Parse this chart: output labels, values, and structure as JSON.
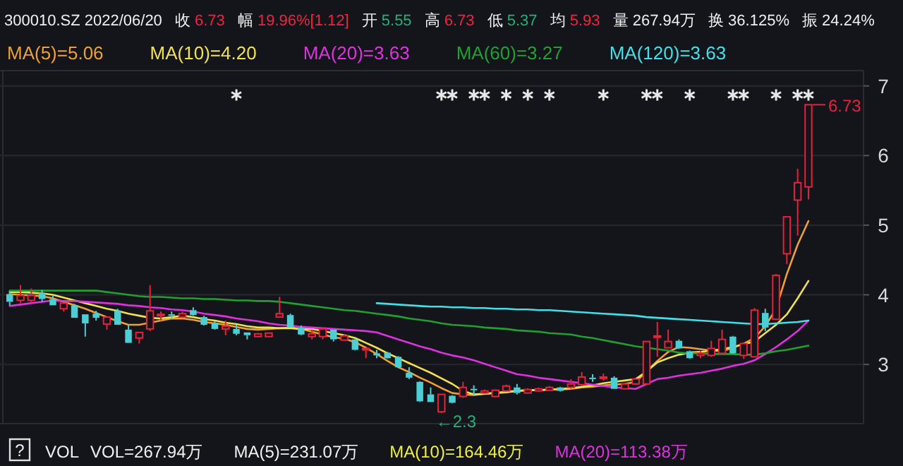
{
  "chart_data": {
    "type": "candlestick",
    "title": "300010.SZ 2022/06/20",
    "categories": [
      null,
      null,
      null,
      null,
      null,
      null,
      null,
      null,
      null,
      null,
      null,
      null,
      null,
      null,
      null,
      null,
      null,
      null,
      null,
      null,
      null,
      null,
      null,
      null,
      null,
      null,
      null,
      null,
      null,
      null,
      null,
      null,
      null,
      null,
      null,
      null,
      null,
      null,
      null,
      null,
      null,
      null,
      null,
      null,
      null,
      null,
      null,
      null,
      null,
      null,
      null,
      null,
      null,
      null,
      null,
      null,
      null,
      null,
      null,
      null,
      null,
      null,
      null,
      null,
      null,
      null,
      null,
      null,
      null,
      null,
      null,
      null,
      null,
      null,
      null
    ],
    "ohlc": [
      [
        4.01,
        4.05,
        3.85,
        3.9
      ],
      [
        3.92,
        4.14,
        3.88,
        3.99
      ],
      [
        3.92,
        4.09,
        3.88,
        3.99
      ],
      [
        4.03,
        4.07,
        3.9,
        3.94
      ],
      [
        3.94,
        4.0,
        3.85,
        3.85
      ],
      [
        3.8,
        3.88,
        3.76,
        3.88
      ],
      [
        3.85,
        3.87,
        3.67,
        3.67
      ],
      [
        3.72,
        3.72,
        3.4,
        3.59
      ],
      [
        3.73,
        3.77,
        3.63,
        3.67
      ],
      [
        3.58,
        3.68,
        3.5,
        3.68
      ],
      [
        3.77,
        3.8,
        3.57,
        3.57
      ],
      [
        3.5,
        3.58,
        3.31,
        3.31
      ],
      [
        3.38,
        3.46,
        3.3,
        3.46
      ],
      [
        3.51,
        4.14,
        3.48,
        3.77
      ],
      [
        3.7,
        3.76,
        3.63,
        3.72
      ],
      [
        3.72,
        3.76,
        3.65,
        3.7
      ],
      [
        3.68,
        3.76,
        3.67,
        3.73
      ],
      [
        3.78,
        3.82,
        3.7,
        3.71
      ],
      [
        3.68,
        3.7,
        3.56,
        3.57
      ],
      [
        3.6,
        3.62,
        3.5,
        3.51
      ],
      [
        3.51,
        3.63,
        3.42,
        3.55
      ],
      [
        3.51,
        3.57,
        3.42,
        3.44
      ],
      [
        3.46,
        3.46,
        3.36,
        3.42
      ],
      [
        3.4,
        3.45,
        3.39,
        3.44
      ],
      [
        3.4,
        3.46,
        3.39,
        3.45
      ],
      [
        3.68,
        3.97,
        3.67,
        3.73
      ],
      [
        3.71,
        3.73,
        3.53,
        3.53
      ],
      [
        3.53,
        3.56,
        3.42,
        3.43
      ],
      [
        3.4,
        3.5,
        3.36,
        3.44
      ],
      [
        3.4,
        3.53,
        3.36,
        3.51
      ],
      [
        3.5,
        3.5,
        3.33,
        3.36
      ],
      [
        3.35,
        3.43,
        3.34,
        3.41
      ],
      [
        3.36,
        3.37,
        3.2,
        3.21
      ],
      [
        3.21,
        3.23,
        3.09,
        3.23
      ],
      [
        3.16,
        3.21,
        3.09,
        3.13
      ],
      [
        3.17,
        3.18,
        3.08,
        3.09
      ],
      [
        3.11,
        3.12,
        2.95,
        2.96
      ],
      [
        2.88,
        2.96,
        2.79,
        2.81
      ],
      [
        2.75,
        2.76,
        2.46,
        2.47
      ],
      [
        2.57,
        2.67,
        2.46,
        2.46
      ],
      [
        2.32,
        2.57,
        2.3,
        2.57
      ],
      [
        2.55,
        2.56,
        2.44,
        2.45
      ],
      [
        2.54,
        2.75,
        2.52,
        2.67
      ],
      [
        2.65,
        2.7,
        2.55,
        2.63
      ],
      [
        2.59,
        2.64,
        2.58,
        2.62
      ],
      [
        2.54,
        2.64,
        2.53,
        2.63
      ],
      [
        2.62,
        2.71,
        2.61,
        2.69
      ],
      [
        2.67,
        2.72,
        2.57,
        2.59
      ],
      [
        2.59,
        2.66,
        2.58,
        2.64
      ],
      [
        2.62,
        2.67,
        2.61,
        2.65
      ],
      [
        2.63,
        2.69,
        2.62,
        2.67
      ],
      [
        2.67,
        2.68,
        2.61,
        2.62
      ],
      [
        2.67,
        2.79,
        2.65,
        2.72
      ],
      [
        2.71,
        2.89,
        2.69,
        2.82
      ],
      [
        2.81,
        2.86,
        2.75,
        2.79
      ],
      [
        2.8,
        2.87,
        2.77,
        2.82
      ],
      [
        2.81,
        2.83,
        2.65,
        2.65
      ],
      [
        2.65,
        2.73,
        2.64,
        2.72
      ],
      [
        2.72,
        2.8,
        2.71,
        2.79
      ],
      [
        2.72,
        3.33,
        2.7,
        3.33
      ],
      [
        3.4,
        3.61,
        3.11,
        3.41
      ],
      [
        3.24,
        3.5,
        3.23,
        3.33
      ],
      [
        3.34,
        3.36,
        3.22,
        3.23
      ],
      [
        3.19,
        3.2,
        3.08,
        3.09
      ],
      [
        3.13,
        3.19,
        3.09,
        3.16
      ],
      [
        3.13,
        3.34,
        3.11,
        3.23
      ],
      [
        3.16,
        3.5,
        3.15,
        3.36
      ],
      [
        3.4,
        3.41,
        3.15,
        3.16
      ],
      [
        3.13,
        3.31,
        3.08,
        3.3
      ],
      [
        3.11,
        3.81,
        3.1,
        3.78
      ],
      [
        3.74,
        3.8,
        3.48,
        3.53
      ],
      [
        3.65,
        4.3,
        3.64,
        4.28
      ],
      [
        4.59,
        5.12,
        4.44,
        5.12
      ],
      [
        5.36,
        5.81,
        4.85,
        5.61
      ],
      [
        5.55,
        6.73,
        5.37,
        6.73
      ]
    ],
    "series": [
      {
        "name": "MA(5)=5.06",
        "type": "line",
        "color": "#f0a030",
        "values": [
          4.01,
          4.0,
          3.99,
          3.98,
          3.95,
          3.9,
          3.85,
          3.8,
          3.74,
          3.68,
          3.62,
          3.57,
          3.57,
          3.6,
          3.63,
          3.66,
          3.66,
          3.64,
          3.61,
          3.59,
          3.57,
          3.54,
          3.51,
          3.5,
          3.51,
          3.52,
          3.53,
          3.51,
          3.47,
          3.43,
          3.39,
          3.37,
          3.32,
          3.24,
          3.15,
          3.05,
          2.96,
          2.89,
          2.81,
          2.74,
          2.66,
          2.59,
          2.57,
          2.56,
          2.58,
          2.59,
          2.61,
          2.62,
          2.63,
          2.63,
          2.64,
          2.64,
          2.65,
          2.67,
          2.68,
          2.7,
          2.71,
          2.72,
          2.75,
          2.9,
          3.05,
          3.18,
          3.25,
          3.24,
          3.22,
          3.2,
          3.19,
          3.24,
          3.3,
          3.38,
          3.55,
          3.8,
          4.3,
          4.72,
          5.06
        ]
      },
      {
        "name": "MA(10)=4.20",
        "type": "line",
        "color": "#f0e050",
        "values": [
          4.04,
          4.04,
          4.03,
          4.02,
          4.0,
          3.96,
          3.92,
          3.88,
          3.84,
          3.8,
          3.77,
          3.73,
          3.7,
          3.67,
          3.66,
          3.68,
          3.7,
          3.68,
          3.65,
          3.63,
          3.6,
          3.58,
          3.55,
          3.53,
          3.53,
          3.52,
          3.52,
          3.51,
          3.51,
          3.48,
          3.45,
          3.42,
          3.38,
          3.31,
          3.24,
          3.16,
          3.09,
          3.02,
          2.95,
          2.88,
          2.8,
          2.72,
          2.62,
          2.57,
          2.58,
          2.59,
          2.6,
          2.62,
          2.63,
          2.63,
          2.64,
          2.65,
          2.66,
          2.68,
          2.7,
          2.73,
          2.75,
          2.77,
          2.79,
          2.9,
          3.03,
          3.09,
          3.14,
          3.17,
          3.18,
          3.2,
          3.22,
          3.25,
          3.29,
          3.33,
          3.45,
          3.57,
          3.72,
          3.95,
          4.2
        ]
      },
      {
        "name": "MA(20)=3.63",
        "type": "line",
        "color": "#e030e0",
        "values": [
          3.84,
          3.86,
          3.88,
          3.9,
          3.92,
          3.91,
          3.91,
          3.9,
          3.89,
          3.88,
          3.87,
          3.85,
          3.84,
          3.82,
          3.81,
          3.79,
          3.78,
          3.76,
          3.73,
          3.71,
          3.69,
          3.66,
          3.64,
          3.62,
          3.59,
          3.57,
          3.56,
          3.54,
          3.53,
          3.52,
          3.51,
          3.5,
          3.49,
          3.48,
          3.46,
          3.41,
          3.36,
          3.31,
          3.26,
          3.22,
          3.17,
          3.13,
          3.1,
          3.06,
          3.01,
          2.96,
          2.91,
          2.86,
          2.84,
          2.81,
          2.79,
          2.77,
          2.75,
          2.73,
          2.71,
          2.69,
          2.67,
          2.66,
          2.65,
          2.72,
          2.79,
          2.81,
          2.84,
          2.86,
          2.88,
          2.91,
          2.94,
          2.98,
          3.01,
          3.06,
          3.15,
          3.25,
          3.36,
          3.48,
          3.63
        ]
      },
      {
        "name": "MA(60)=3.27",
        "type": "line",
        "color": "#20a030",
        "values": [
          4.06,
          4.06,
          4.06,
          4.06,
          4.06,
          4.06,
          4.06,
          4.06,
          4.06,
          4.04,
          4.02,
          4.0,
          3.98,
          3.97,
          3.97,
          3.96,
          3.95,
          3.95,
          3.94,
          3.94,
          3.93,
          3.92,
          3.92,
          3.91,
          3.91,
          3.9,
          3.88,
          3.86,
          3.84,
          3.82,
          3.8,
          3.78,
          3.77,
          3.75,
          3.73,
          3.71,
          3.69,
          3.66,
          3.64,
          3.62,
          3.59,
          3.57,
          3.56,
          3.55,
          3.53,
          3.52,
          3.51,
          3.49,
          3.48,
          3.47,
          3.45,
          3.44,
          3.43,
          3.4,
          3.38,
          3.35,
          3.32,
          3.29,
          3.26,
          3.24,
          3.22,
          3.2,
          3.17,
          3.16,
          3.16,
          3.15,
          3.15,
          3.15,
          3.14,
          3.14,
          3.16,
          3.19,
          3.21,
          3.24,
          3.27
        ]
      },
      {
        "name": "MA(120)=3.63",
        "type": "line",
        "color": "#40e0e8",
        "values": [
          null,
          null,
          null,
          null,
          null,
          null,
          null,
          null,
          null,
          null,
          null,
          null,
          null,
          null,
          null,
          null,
          null,
          null,
          null,
          null,
          null,
          null,
          null,
          null,
          null,
          null,
          null,
          null,
          null,
          null,
          null,
          null,
          null,
          null,
          3.88,
          3.87,
          3.86,
          3.85,
          3.84,
          3.83,
          3.83,
          3.82,
          3.82,
          3.81,
          3.81,
          3.8,
          3.8,
          3.79,
          3.79,
          3.78,
          3.78,
          3.77,
          3.76,
          3.75,
          3.74,
          3.73,
          3.72,
          3.71,
          3.7,
          3.68,
          3.67,
          3.66,
          3.65,
          3.64,
          3.63,
          3.62,
          3.61,
          3.6,
          3.59,
          3.58,
          3.58,
          3.59,
          3.6,
          3.61,
          3.63
        ]
      },
      {
        "type": "scatter",
        "marker": "cross",
        "color": "#e8e8e8",
        "values": [
          null,
          null,
          null,
          null,
          null,
          null,
          null,
          null,
          null,
          null,
          null,
          null,
          null,
          null,
          null,
          null,
          null,
          null,
          null,
          null,
          null,
          6.87,
          null,
          null,
          null,
          null,
          null,
          null,
          null,
          null,
          null,
          null,
          null,
          null,
          null,
          null,
          null,
          null,
          null,
          null,
          6.87,
          6.87,
          null,
          6.87,
          6.87,
          null,
          6.87,
          null,
          6.87,
          null,
          6.87,
          null,
          null,
          null,
          null,
          6.87,
          null,
          null,
          null,
          6.87,
          6.87,
          null,
          null,
          6.87,
          null,
          null,
          null,
          6.87,
          6.87,
          null,
          null,
          6.87,
          null,
          6.87,
          6.87
        ]
      }
    ],
    "ylim": [
      2.15,
      7.22
    ],
    "yticks": [
      3,
      4,
      5,
      6,
      7
    ],
    "grid": "y",
    "legend": "top left",
    "tick_labels": "y",
    "annotations": [
      "收 6.73",
      "幅 19.96%[1.12]",
      "开 5.55",
      "高 6.73",
      "低 5.37",
      "均 5.93",
      "量 267.94万",
      "换 36.125%",
      "振 24.24%",
      "←2.3",
      "6.73",
      "?",
      "VOL",
      "VOL=267.94万",
      "MA(5)=231.07万",
      "MA(10)=164.46万",
      "MA(20)=113.38万"
    ]
  }
}
